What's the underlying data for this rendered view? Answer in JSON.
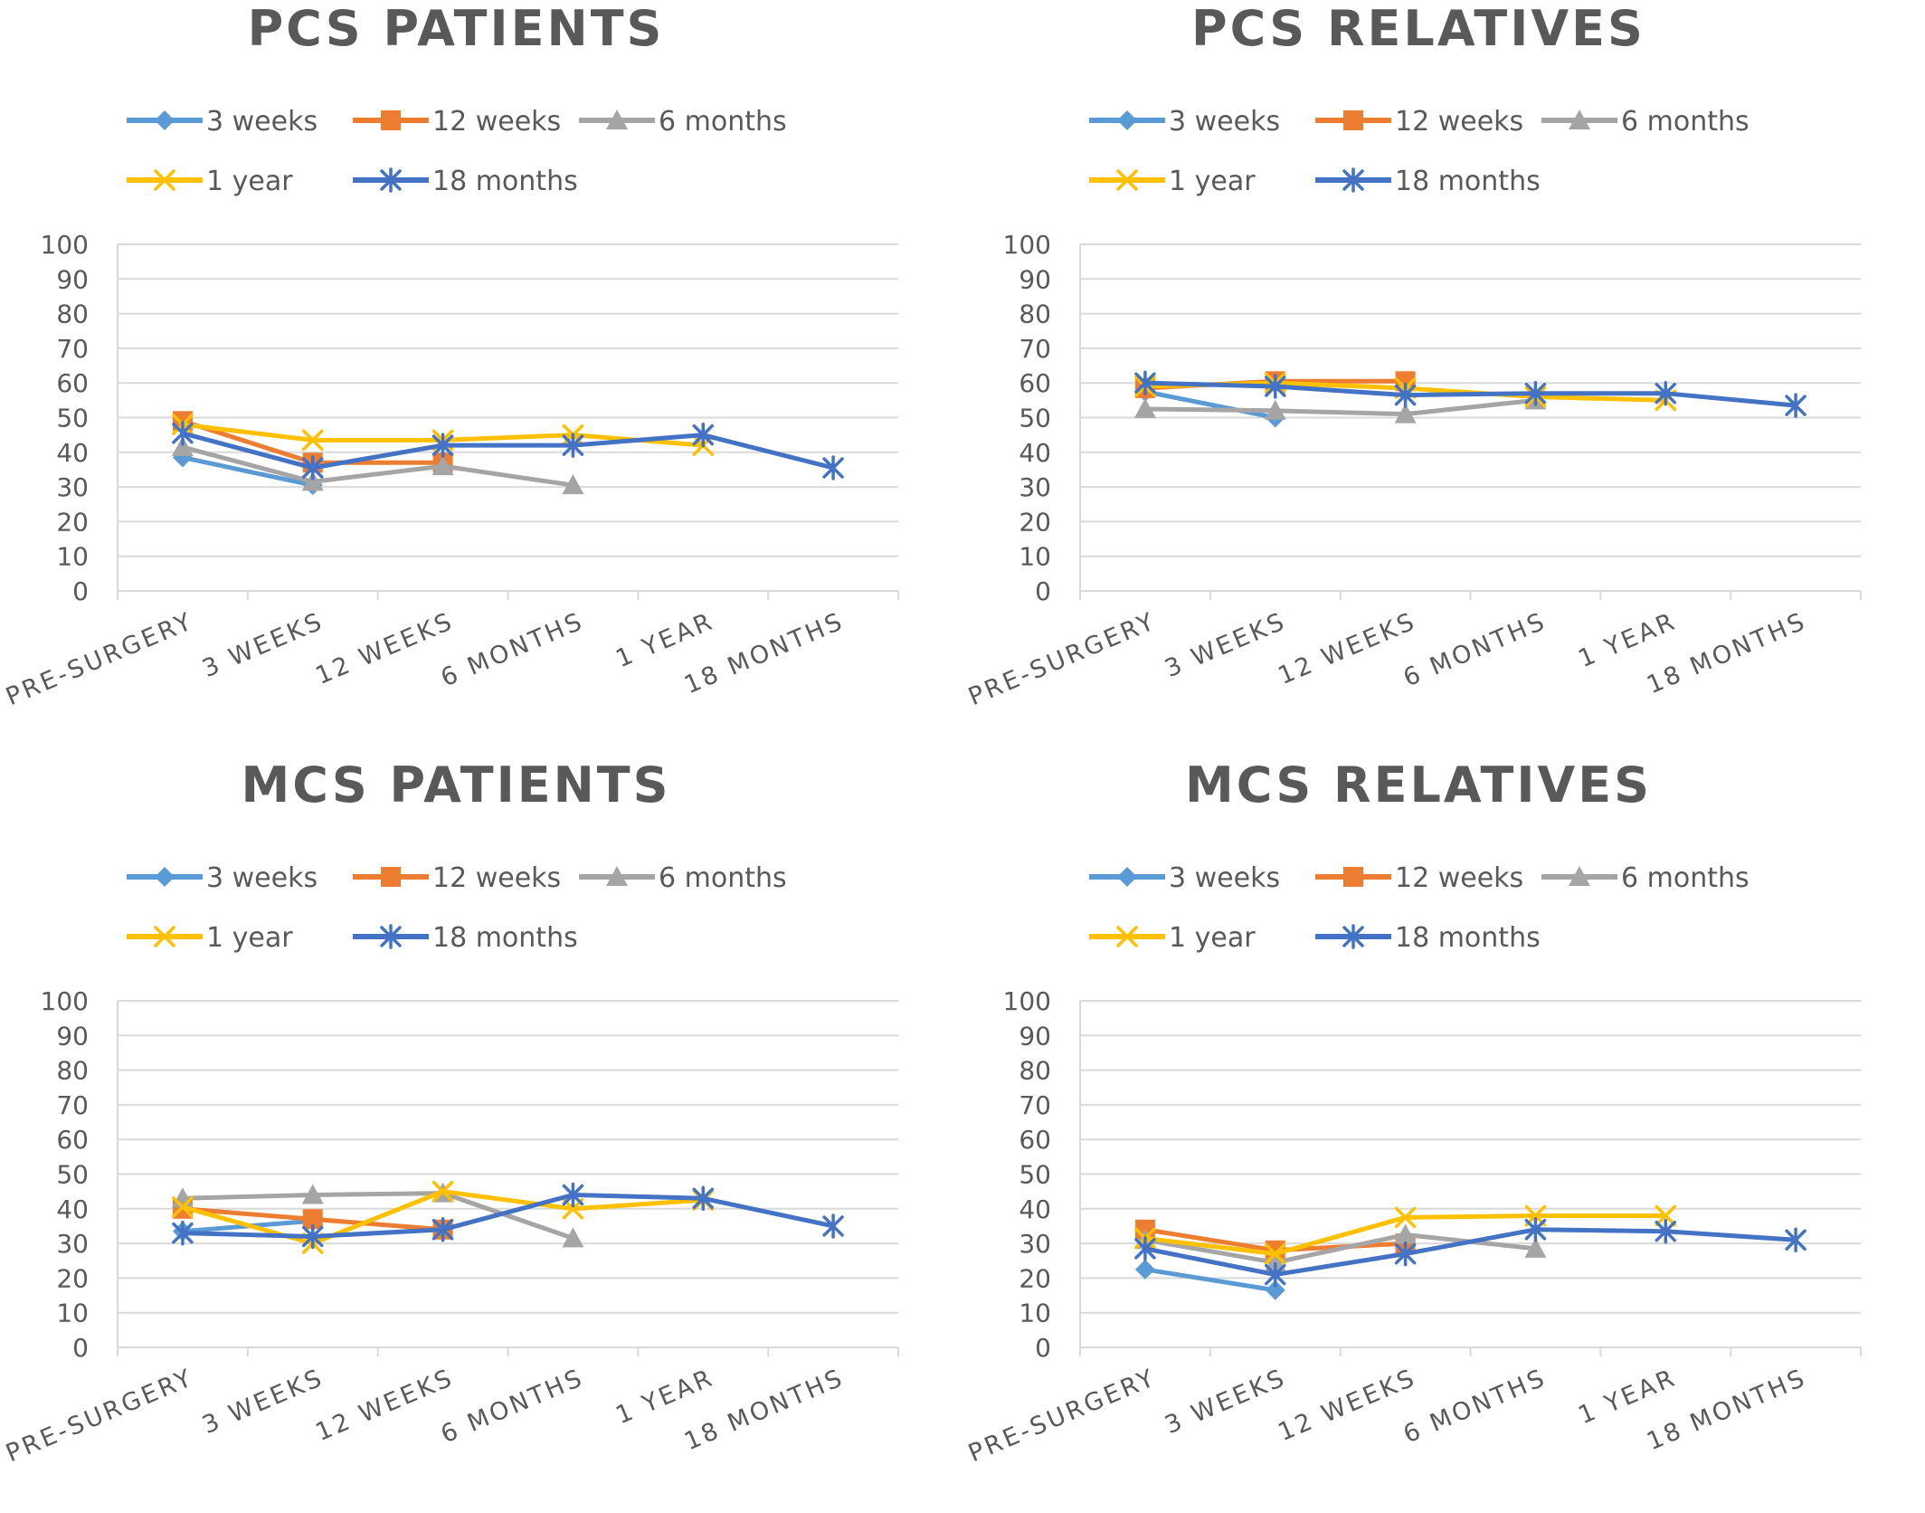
{
  "chart_data": [
    {
      "type": "line",
      "title": "PCS PATIENTS",
      "categories": [
        "PRE-SURGERY",
        "3 WEEKS",
        "12 WEEKS",
        "6 MONTHS",
        "1 YEAR",
        "18 MONTHS"
      ],
      "ylim": [
        0,
        100
      ],
      "yticks": [
        0,
        10,
        20,
        30,
        40,
        50,
        60,
        70,
        80,
        90,
        100
      ],
      "grid": true,
      "legend": "top",
      "series": [
        {
          "name": "3 weeks",
          "color": "#5B9BD5",
          "marker": "diamond",
          "values": [
            38.5,
            30.5,
            null,
            null,
            null,
            null
          ]
        },
        {
          "name": "12 weeks",
          "color": "#ED7D31",
          "marker": "square",
          "values": [
            49,
            37,
            37,
            null,
            null,
            null
          ]
        },
        {
          "name": "6 months",
          "color": "#A5A5A5",
          "marker": "triangle",
          "values": [
            41.5,
            31.5,
            36,
            30.5,
            null,
            null
          ]
        },
        {
          "name": "1 year",
          "color": "#FFC000",
          "marker": "x",
          "values": [
            48,
            43.5,
            43.5,
            45,
            42,
            null
          ]
        },
        {
          "name": "18 months",
          "color": "#4472C4",
          "marker": "asterisk",
          "values": [
            45.5,
            35.5,
            42,
            42,
            45,
            35.5
          ]
        }
      ]
    },
    {
      "type": "line",
      "title": "PCS RELATIVES",
      "categories": [
        "PRE-SURGERY",
        "3 WEEKS",
        "12 WEEKS",
        "6 MONTHS",
        "1 YEAR",
        "18 MONTHS"
      ],
      "ylim": [
        0,
        100
      ],
      "yticks": [
        0,
        10,
        20,
        30,
        40,
        50,
        60,
        70,
        80,
        90,
        100
      ],
      "grid": true,
      "legend": "top",
      "series": [
        {
          "name": "3 weeks",
          "color": "#5B9BD5",
          "marker": "diamond",
          "values": [
            57.5,
            50,
            null,
            null,
            null,
            null
          ]
        },
        {
          "name": "12 weeks",
          "color": "#ED7D31",
          "marker": "square",
          "values": [
            58.5,
            60.5,
            60.5,
            null,
            null,
            null
          ]
        },
        {
          "name": "6 months",
          "color": "#A5A5A5",
          "marker": "triangle",
          "values": [
            52.5,
            52,
            51,
            55,
            null,
            null
          ]
        },
        {
          "name": "1 year",
          "color": "#FFC000",
          "marker": "x",
          "values": [
            59,
            60,
            58.5,
            56,
            55,
            null
          ]
        },
        {
          "name": "18 months",
          "color": "#4472C4",
          "marker": "asterisk",
          "values": [
            60,
            59,
            56.5,
            57,
            57,
            53.5
          ]
        }
      ]
    },
    {
      "type": "line",
      "title": "MCS PATIENTS",
      "categories": [
        "PRE-SURGERY",
        "3 WEEKS",
        "12 WEEKS",
        "6 MONTHS",
        "1 YEAR",
        "18 MONTHS"
      ],
      "ylim": [
        0,
        100
      ],
      "yticks": [
        0,
        10,
        20,
        30,
        40,
        50,
        60,
        70,
        80,
        90,
        100
      ],
      "grid": true,
      "legend": "top",
      "series": [
        {
          "name": "3 weeks",
          "color": "#5B9BD5",
          "marker": "diamond",
          "values": [
            33.5,
            36.5,
            null,
            null,
            null,
            null
          ]
        },
        {
          "name": "12 weeks",
          "color": "#ED7D31",
          "marker": "square",
          "values": [
            40,
            37,
            34,
            null,
            null,
            null
          ]
        },
        {
          "name": "6 months",
          "color": "#A5A5A5",
          "marker": "triangle",
          "values": [
            43,
            44,
            44.5,
            31.5,
            null,
            null
          ]
        },
        {
          "name": "1 year",
          "color": "#FFC000",
          "marker": "x",
          "values": [
            40.5,
            30,
            45,
            40,
            42.5,
            null
          ]
        },
        {
          "name": "18 months",
          "color": "#4472C4",
          "marker": "asterisk",
          "values": [
            33,
            32,
            34,
            44,
            43,
            35
          ]
        }
      ]
    },
    {
      "type": "line",
      "title": "MCS RELATIVES",
      "categories": [
        "PRE-SURGERY",
        "3 WEEKS",
        "12 WEEKS",
        "6 MONTHS",
        "1 YEAR",
        "18 MONTHS"
      ],
      "ylim": [
        0,
        100
      ],
      "yticks": [
        0,
        10,
        20,
        30,
        40,
        50,
        60,
        70,
        80,
        90,
        100
      ],
      "grid": true,
      "legend": "top",
      "series": [
        {
          "name": "3 weeks",
          "color": "#5B9BD5",
          "marker": "diamond",
          "values": [
            22.5,
            16.5,
            null,
            null,
            null,
            null
          ]
        },
        {
          "name": "12 weeks",
          "color": "#ED7D31",
          "marker": "square",
          "values": [
            34,
            28,
            30,
            null,
            null,
            null
          ]
        },
        {
          "name": "6 months",
          "color": "#A5A5A5",
          "marker": "triangle",
          "values": [
            31,
            24.5,
            32.5,
            28.5,
            null,
            null
          ]
        },
        {
          "name": "1 year",
          "color": "#FFC000",
          "marker": "x",
          "values": [
            31.5,
            27,
            37.5,
            38,
            38,
            null
          ]
        },
        {
          "name": "18 months",
          "color": "#4472C4",
          "marker": "asterisk",
          "values": [
            28.5,
            21,
            27,
            34,
            33.5,
            31
          ]
        }
      ]
    }
  ]
}
